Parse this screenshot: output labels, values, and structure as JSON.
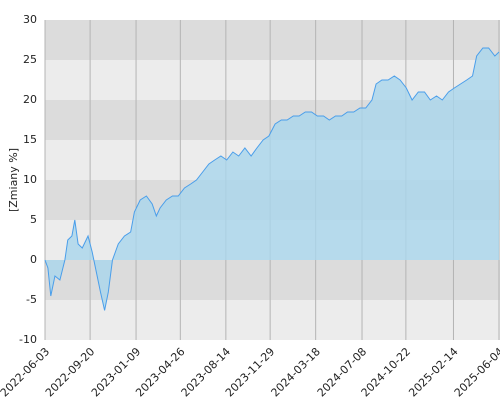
{
  "chart_data": {
    "type": "area",
    "y_label": "[Zmiany %]",
    "color": "#4a9eea",
    "fill": "#a9d6ec",
    "xlim": [
      "2022-06-03",
      "2025-06-04"
    ],
    "xticks": [
      "2022-06-03",
      "2022-09-20",
      "2023-01-09",
      "2023-04-26",
      "2023-08-14",
      "2023-11-29",
      "2024-03-18",
      "2024-07-08",
      "2024-10-22",
      "2025-02-14",
      "2025-06-04"
    ],
    "ylim": [
      -10,
      30
    ],
    "yticks": [
      -10,
      -5,
      0,
      5,
      10,
      15,
      20,
      25,
      30
    ],
    "grid": true,
    "x": [
      "2022-06-03",
      "2022-06-10",
      "2022-06-17",
      "2022-06-27",
      "2022-07-09",
      "2022-07-21",
      "2022-07-28",
      "2022-08-07",
      "2022-08-14",
      "2022-08-22",
      "2022-09-01",
      "2022-09-15",
      "2022-09-25",
      "2022-10-03",
      "2022-10-15",
      "2022-10-25",
      "2022-11-03",
      "2022-11-13",
      "2022-11-27",
      "2022-12-12",
      "2022-12-27",
      "2023-01-05",
      "2023-01-19",
      "2023-02-03",
      "2023-02-17",
      "2023-02-27",
      "2023-03-08",
      "2023-03-23",
      "2023-04-07",
      "2023-04-21",
      "2023-05-06",
      "2023-05-21",
      "2023-06-04",
      "2023-06-19",
      "2023-07-04",
      "2023-07-18",
      "2023-08-02",
      "2023-08-16",
      "2023-08-31",
      "2023-09-14",
      "2023-09-29",
      "2023-10-14",
      "2023-10-28",
      "2023-11-12",
      "2023-11-26",
      "2023-12-11",
      "2023-12-26",
      "2024-01-09",
      "2024-01-24",
      "2024-02-07",
      "2024-02-22",
      "2024-03-08",
      "2024-03-22",
      "2024-04-06",
      "2024-04-20",
      "2024-05-05",
      "2024-05-20",
      "2024-06-03",
      "2024-06-18",
      "2024-07-03",
      "2024-07-17",
      "2024-08-01",
      "2024-08-11",
      "2024-08-25",
      "2024-09-09",
      "2024-09-24",
      "2024-10-08",
      "2024-10-23",
      "2024-11-06",
      "2024-11-21",
      "2024-12-06",
      "2024-12-20",
      "2025-01-04",
      "2025-01-18",
      "2025-02-02",
      "2025-02-16",
      "2025-03-03",
      "2025-03-18",
      "2025-04-01",
      "2025-04-11",
      "2025-04-26",
      "2025-05-10",
      "2025-05-25",
      "2025-06-04"
    ],
    "values": [
      0,
      -1,
      -4.5,
      -2,
      -2.5,
      0,
      2.5,
      3,
      5,
      2,
      1.5,
      3,
      1,
      -1,
      -4,
      -6.3,
      -4,
      0,
      2,
      3,
      3.5,
      6,
      7.5,
      8,
      7,
      5.5,
      6.5,
      7.5,
      8,
      8,
      9,
      9.5,
      10,
      11,
      12,
      12.5,
      13,
      12.5,
      13.5,
      13,
      14,
      13,
      14,
      15,
      15.5,
      17,
      17.5,
      17.5,
      18,
      18,
      18.5,
      18.5,
      18,
      18,
      17.5,
      18,
      18,
      18.5,
      18.5,
      19,
      19,
      20,
      22,
      22.5,
      22.5,
      23,
      22.5,
      21.5,
      20,
      21,
      21,
      20,
      20.5,
      20,
      21,
      21.5,
      22,
      22.5,
      23,
      25.5,
      26.5,
      26.5,
      25.5,
      26
    ]
  }
}
